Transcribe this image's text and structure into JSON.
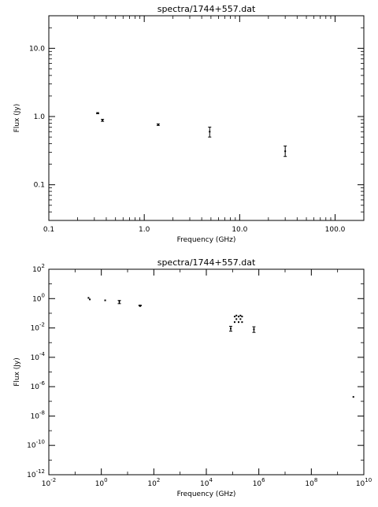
{
  "chart_data": [
    {
      "type": "scatter",
      "title": "spectra/1744+557.dat",
      "xlabel": "Frequency (GHz)",
      "ylabel": "Flux (Jy)",
      "x_scale": "log",
      "y_scale": "log",
      "xlim": [
        0.1,
        200
      ],
      "ylim": [
        0.03,
        30
      ],
      "x_ticks": [
        {
          "value": 0.1,
          "label": "0.1"
        },
        {
          "value": 1,
          "label": "1.0"
        },
        {
          "value": 10,
          "label": "10.0"
        },
        {
          "value": 100,
          "label": "100.0"
        }
      ],
      "y_ticks": [
        {
          "value": 0.1,
          "label": "0.1"
        },
        {
          "value": 1,
          "label": "1.0"
        },
        {
          "value": 10,
          "label": "10.0"
        }
      ],
      "series": [
        {
          "points": [
            {
              "x": 0.325,
              "y": 1.12,
              "lo": 1.1,
              "hi": 1.14
            },
            {
              "x": 0.365,
              "y": 0.88,
              "lo": 0.85,
              "hi": 0.91
            },
            {
              "x": 1.4,
              "y": 0.76,
              "lo": 0.74,
              "hi": 0.78
            },
            {
              "x": 4.85,
              "y": 0.6,
              "lo": 0.5,
              "hi": 0.7
            },
            {
              "x": 30,
              "y": 0.31,
              "lo": 0.26,
              "hi": 0.37
            }
          ]
        }
      ]
    },
    {
      "type": "scatter",
      "title": "spectra/1744+557.dat",
      "xlabel": "Frequency (GHz)",
      "ylabel": "Flux (Jy)",
      "x_scale": "log",
      "y_scale": "log",
      "xlim": [
        0.01,
        10000000000
      ],
      "ylim": [
        1e-12,
        100
      ],
      "x_ticks": [
        {
          "value": 0.01,
          "base": "10",
          "exp": "-2"
        },
        {
          "value": 1,
          "base": "10",
          "exp": "0"
        },
        {
          "value": 100,
          "base": "10",
          "exp": "2"
        },
        {
          "value": 10000,
          "base": "10",
          "exp": "4"
        },
        {
          "value": 1000000,
          "base": "10",
          "exp": "6"
        },
        {
          "value": 100000000,
          "base": "10",
          "exp": "8"
        },
        {
          "value": 10000000000,
          "base": "10",
          "exp": "10"
        }
      ],
      "y_ticks": [
        {
          "value": 1e-12,
          "base": "10",
          "exp": "-12"
        },
        {
          "value": 1e-10,
          "base": "10",
          "exp": "-10"
        },
        {
          "value": 1e-08,
          "base": "10",
          "exp": "-8"
        },
        {
          "value": 1e-06,
          "base": "10",
          "exp": "-6"
        },
        {
          "value": 0.0001,
          "base": "10",
          "exp": "-4"
        },
        {
          "value": 0.01,
          "base": "10",
          "exp": "-2"
        },
        {
          "value": 1,
          "base": "10",
          "exp": "0"
        },
        {
          "value": 100,
          "base": "10",
          "exp": "2"
        }
      ],
      "series": [
        {
          "points": [
            {
              "x": 0.325,
              "y": 1.12
            },
            {
              "x": 0.365,
              "y": 0.88
            },
            {
              "x": 1.4,
              "y": 0.76
            },
            {
              "x": 4.85,
              "y": 0.6,
              "lo": 0.45,
              "hi": 0.75
            },
            {
              "x": 28,
              "y": 0.34
            },
            {
              "x": 30,
              "y": 0.31
            },
            {
              "x": 32,
              "y": 0.34
            },
            {
              "x": 85000,
              "y": 0.009,
              "lo": 0.006,
              "hi": 0.013
            },
            {
              "x": 120000,
              "y": 0.025
            },
            {
              "x": 120000,
              "y": 0.06
            },
            {
              "x": 140000,
              "y": 0.04
            },
            {
              "x": 140000,
              "y": 0.07
            },
            {
              "x": 170000,
              "y": 0.025
            },
            {
              "x": 170000,
              "y": 0.06
            },
            {
              "x": 200000,
              "y": 0.04
            },
            {
              "x": 200000,
              "y": 0.07
            },
            {
              "x": 230000,
              "y": 0.025
            },
            {
              "x": 230000,
              "y": 0.06
            },
            {
              "x": 650000,
              "y": 0.008,
              "lo": 0.005,
              "hi": 0.012
            },
            {
              "x": 4000000000,
              "y": 2e-07
            }
          ]
        }
      ]
    }
  ]
}
